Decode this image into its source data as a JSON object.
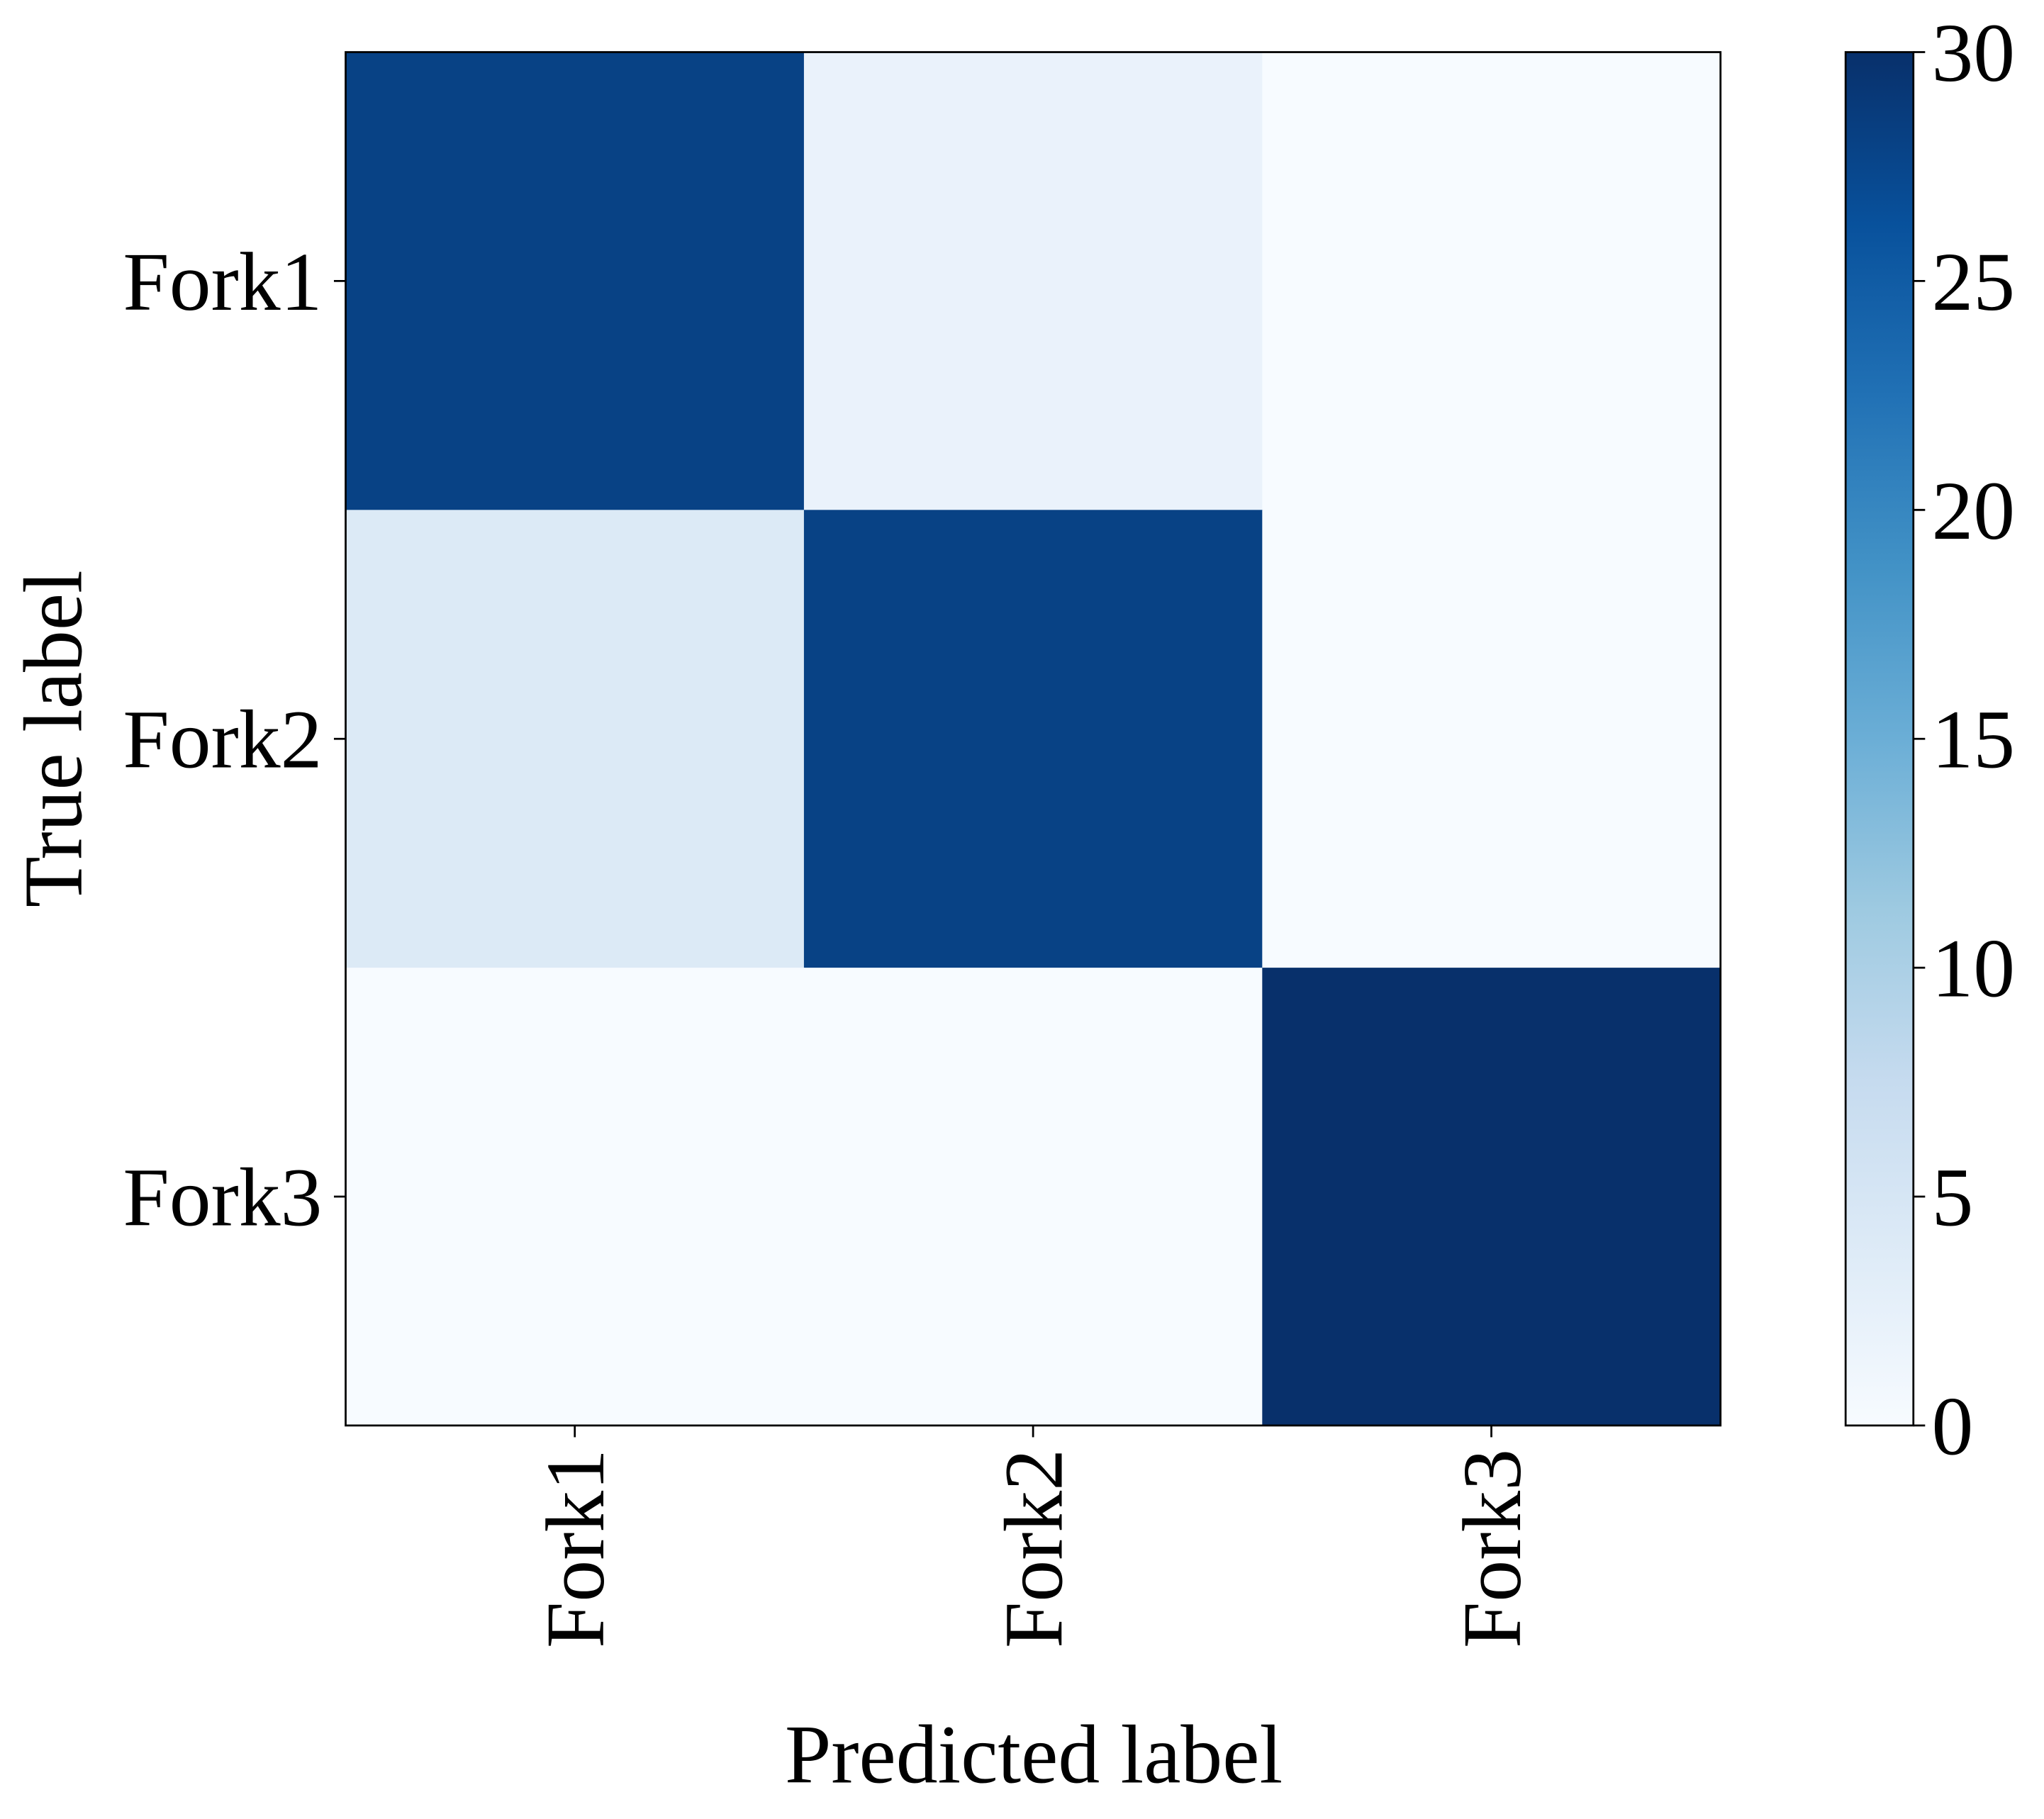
{
  "chart_data": {
    "type": "heatmap",
    "x_label": "Predicted label",
    "y_label": "True label",
    "x_categories": [
      "Fork1",
      "Fork2",
      "Fork3"
    ],
    "y_categories": [
      "Fork1",
      "Fork2",
      "Fork3"
    ],
    "values": [
      [
        28,
        2,
        0
      ],
      [
        4,
        28,
        0
      ],
      [
        0,
        0,
        30
      ]
    ],
    "colormap": "Blues",
    "zlim": [
      0,
      30
    ],
    "zticks": [
      0,
      5,
      10,
      15,
      20,
      25,
      30
    ]
  }
}
